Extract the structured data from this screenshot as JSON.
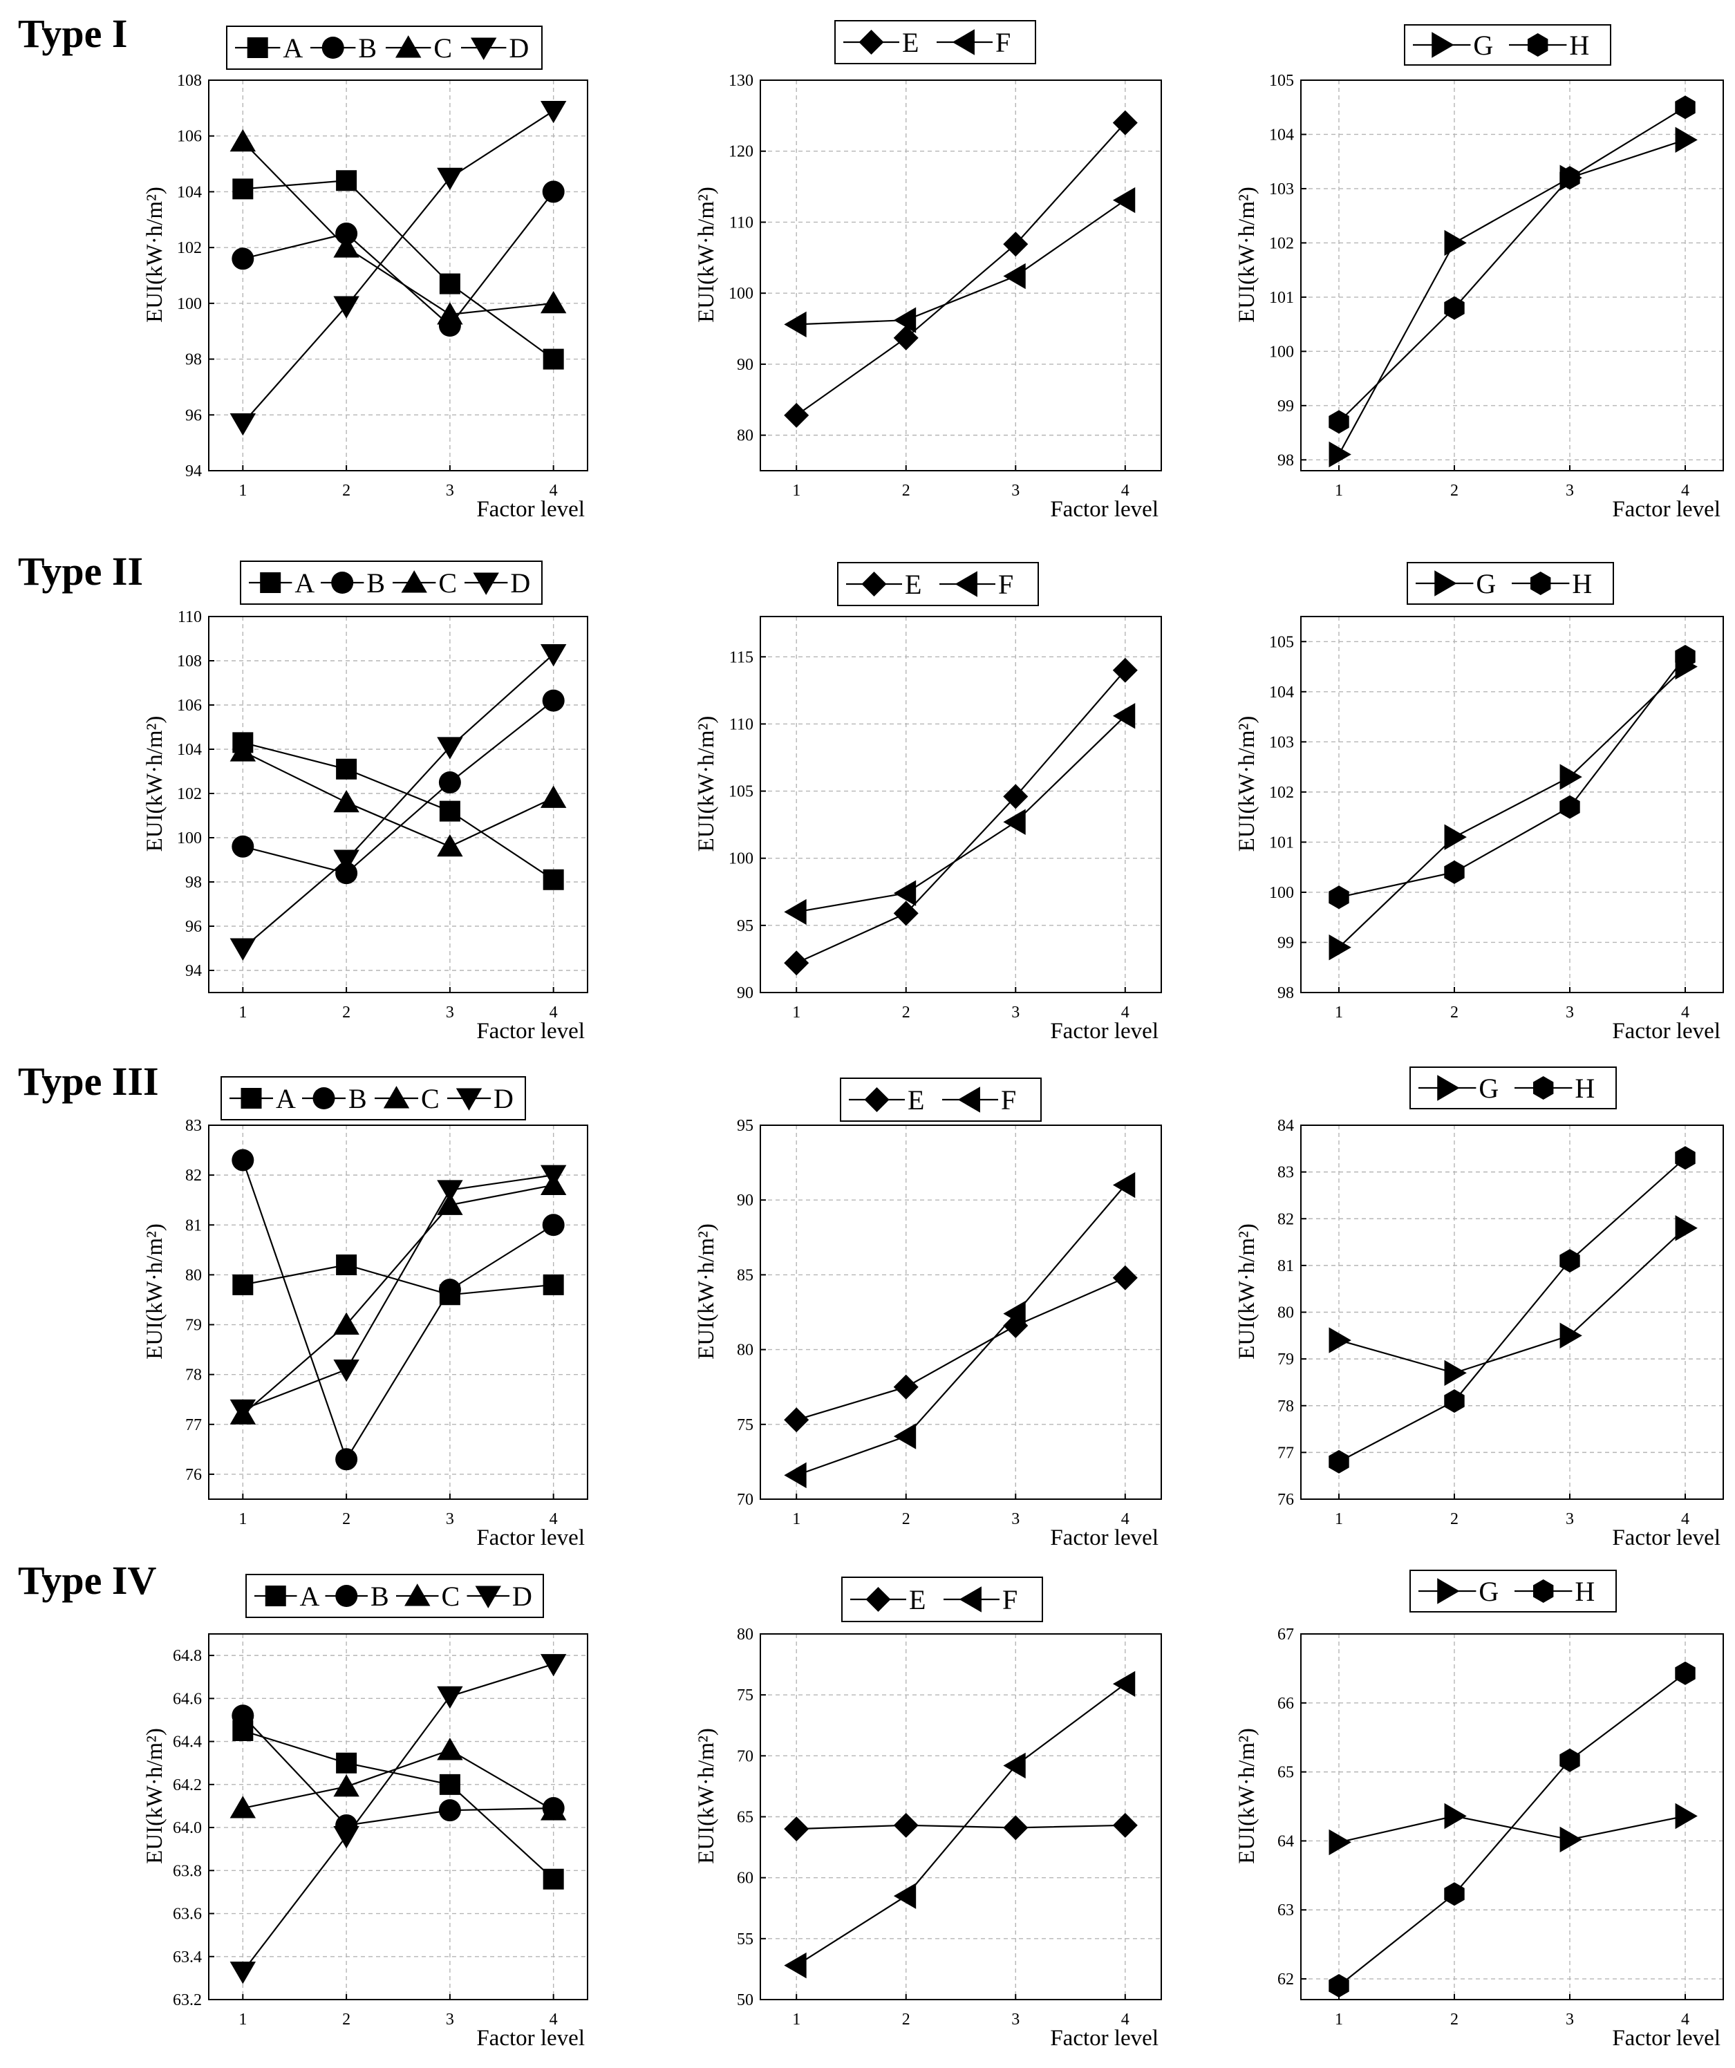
{
  "figure": {
    "row_labels": [
      "Type I",
      "Type II",
      "Type III",
      "Type IV"
    ],
    "x_axis_label": "Factor level",
    "y_axis_label": "EUI(kW·h/m²)"
  },
  "chart_data": [
    {
      "type": "line",
      "title": "",
      "row": "Type I",
      "xlabel": "Factor level",
      "ylabel": "EUI(kW·h/m²)",
      "x": [
        1,
        2,
        3,
        4
      ],
      "ylim": [
        94,
        108
      ],
      "yticks": [
        94,
        96,
        98,
        100,
        102,
        104,
        106,
        108
      ],
      "grid": true,
      "legend": "top",
      "series": [
        {
          "name": "A",
          "marker": "square",
          "values": [
            104.1,
            104.4,
            100.7,
            98.0
          ]
        },
        {
          "name": "B",
          "marker": "circle",
          "values": [
            101.6,
            102.5,
            99.2,
            104.0
          ]
        },
        {
          "name": "C",
          "marker": "triangle-up",
          "values": [
            105.8,
            102.0,
            99.6,
            100.0
          ]
        },
        {
          "name": "D",
          "marker": "triangle-down",
          "values": [
            95.7,
            99.9,
            104.5,
            106.9
          ]
        }
      ]
    },
    {
      "type": "line",
      "title": "",
      "row": "Type I",
      "xlabel": "Factor level",
      "ylabel": "EUI(kW·h/m²)",
      "x": [
        1,
        2,
        3,
        4
      ],
      "ylim": [
        75,
        130
      ],
      "yticks": [
        80,
        90,
        100,
        110,
        120,
        130
      ],
      "grid": true,
      "legend": "top",
      "series": [
        {
          "name": "E",
          "marker": "diamond",
          "values": [
            82.8,
            93.7,
            106.9,
            124.0
          ]
        },
        {
          "name": "F",
          "marker": "triangle-left",
          "values": [
            95.6,
            96.2,
            102.4,
            113.1
          ]
        }
      ]
    },
    {
      "type": "line",
      "title": "",
      "row": "Type I",
      "xlabel": "Factor level",
      "ylabel": "EUI(kW·h/m²)",
      "x": [
        1,
        2,
        3,
        4
      ],
      "ylim": [
        97.8,
        105
      ],
      "yticks": [
        98,
        99,
        100,
        101,
        102,
        103,
        104,
        105
      ],
      "grid": true,
      "legend": "top",
      "series": [
        {
          "name": "G",
          "marker": "triangle-right",
          "values": [
            98.1,
            102.0,
            103.2,
            103.9
          ]
        },
        {
          "name": "H",
          "marker": "hexagon",
          "values": [
            98.7,
            100.8,
            103.2,
            104.5
          ]
        }
      ]
    },
    {
      "type": "line",
      "title": "",
      "row": "Type II",
      "xlabel": "Factor level",
      "ylabel": "EUI(kW·h/m²)",
      "x": [
        1,
        2,
        3,
        4
      ],
      "ylim": [
        93,
        110
      ],
      "yticks": [
        94,
        96,
        98,
        100,
        102,
        104,
        106,
        108,
        110
      ],
      "grid": true,
      "legend": "top",
      "series": [
        {
          "name": "A",
          "marker": "square",
          "values": [
            104.3,
            103.1,
            101.2,
            98.1
          ]
        },
        {
          "name": "B",
          "marker": "circle",
          "values": [
            99.6,
            98.4,
            102.5,
            106.2
          ]
        },
        {
          "name": "C",
          "marker": "triangle-up",
          "values": [
            103.9,
            101.6,
            99.6,
            101.8
          ]
        },
        {
          "name": "D",
          "marker": "triangle-down",
          "values": [
            95.0,
            99.0,
            104.1,
            108.3
          ]
        }
      ]
    },
    {
      "type": "line",
      "title": "",
      "row": "Type II",
      "xlabel": "Factor level",
      "ylabel": "EUI(kW·h/m²)",
      "x": [
        1,
        2,
        3,
        4
      ],
      "ylim": [
        90,
        118
      ],
      "yticks": [
        90,
        95,
        100,
        105,
        110,
        115
      ],
      "grid": true,
      "legend": "top",
      "series": [
        {
          "name": "E",
          "marker": "diamond",
          "values": [
            92.2,
            95.9,
            104.6,
            114.0
          ]
        },
        {
          "name": "F",
          "marker": "triangle-left",
          "values": [
            96.0,
            97.4,
            102.7,
            110.6
          ]
        }
      ]
    },
    {
      "type": "line",
      "title": "",
      "row": "Type II",
      "xlabel": "Factor level",
      "ylabel": "EUI(kW·h/m²)",
      "x": [
        1,
        2,
        3,
        4
      ],
      "ylim": [
        98,
        105.5
      ],
      "yticks": [
        98,
        99,
        100,
        101,
        102,
        103,
        104,
        105
      ],
      "grid": true,
      "legend": "top",
      "series": [
        {
          "name": "G",
          "marker": "triangle-right",
          "values": [
            98.9,
            101.1,
            102.3,
            104.5
          ]
        },
        {
          "name": "H",
          "marker": "hexagon",
          "values": [
            99.9,
            100.4,
            101.7,
            104.7
          ]
        }
      ]
    },
    {
      "type": "line",
      "title": "",
      "row": "Type III",
      "xlabel": "Factor level",
      "ylabel": "EUI(kW·h/m²)",
      "x": [
        1,
        2,
        3,
        4
      ],
      "ylim": [
        75.5,
        83
      ],
      "yticks": [
        76,
        77,
        78,
        79,
        80,
        81,
        82,
        83
      ],
      "grid": true,
      "legend": "top",
      "series": [
        {
          "name": "A",
          "marker": "square",
          "values": [
            79.8,
            80.2,
            79.6,
            79.8
          ]
        },
        {
          "name": "B",
          "marker": "circle",
          "values": [
            82.3,
            76.3,
            79.7,
            81.0
          ]
        },
        {
          "name": "C",
          "marker": "triangle-up",
          "values": [
            77.2,
            79.0,
            81.4,
            81.8
          ]
        },
        {
          "name": "D",
          "marker": "triangle-down",
          "values": [
            77.3,
            78.1,
            81.7,
            82.0
          ]
        }
      ]
    },
    {
      "type": "line",
      "title": "",
      "row": "Type III",
      "xlabel": "Factor level",
      "ylabel": "EUI(kW·h/m²)",
      "x": [
        1,
        2,
        3,
        4
      ],
      "ylim": [
        70,
        95
      ],
      "yticks": [
        70,
        75,
        80,
        85,
        90,
        95
      ],
      "grid": true,
      "legend": "top",
      "series": [
        {
          "name": "E",
          "marker": "diamond",
          "values": [
            75.3,
            77.5,
            81.6,
            84.8
          ]
        },
        {
          "name": "F",
          "marker": "triangle-left",
          "values": [
            71.6,
            74.2,
            82.4,
            91.0
          ]
        }
      ]
    },
    {
      "type": "line",
      "title": "",
      "row": "Type III",
      "xlabel": "Factor level",
      "ylabel": "EUI(kW·h/m²)",
      "x": [
        1,
        2,
        3,
        4
      ],
      "ylim": [
        76,
        84
      ],
      "yticks": [
        76,
        77,
        78,
        79,
        80,
        81,
        82,
        83,
        84
      ],
      "grid": true,
      "legend": "top",
      "series": [
        {
          "name": "G",
          "marker": "triangle-right",
          "values": [
            79.4,
            78.7,
            79.5,
            81.8
          ]
        },
        {
          "name": "H",
          "marker": "hexagon",
          "values": [
            76.8,
            78.1,
            81.1,
            83.3
          ]
        }
      ]
    },
    {
      "type": "line",
      "title": "",
      "row": "Type IV",
      "xlabel": "Factor level",
      "ylabel": "EUI(kW·h/m²)",
      "x": [
        1,
        2,
        3,
        4
      ],
      "ylim": [
        63.2,
        64.9
      ],
      "yticks": [
        63.2,
        63.4,
        63.6,
        63.8,
        64.0,
        64.2,
        64.4,
        64.6,
        64.8
      ],
      "grid": true,
      "legend": "top",
      "series": [
        {
          "name": "A",
          "marker": "square",
          "values": [
            64.45,
            64.3,
            64.2,
            63.76
          ]
        },
        {
          "name": "B",
          "marker": "circle",
          "values": [
            64.52,
            64.01,
            64.08,
            64.09
          ]
        },
        {
          "name": "C",
          "marker": "triangle-up",
          "values": [
            64.09,
            64.19,
            64.36,
            64.08
          ]
        },
        {
          "name": "D",
          "marker": "triangle-down",
          "values": [
            63.33,
            63.96,
            64.61,
            64.76
          ]
        }
      ]
    },
    {
      "type": "line",
      "title": "",
      "row": "Type IV",
      "xlabel": "Factor level",
      "ylabel": "EUI(kW·h/m²)",
      "x": [
        1,
        2,
        3,
        4
      ],
      "ylim": [
        50,
        80
      ],
      "yticks": [
        50,
        55,
        60,
        65,
        70,
        75,
        80
      ],
      "grid": true,
      "legend": "top",
      "series": [
        {
          "name": "E",
          "marker": "diamond",
          "values": [
            64.0,
            64.3,
            64.1,
            64.3
          ]
        },
        {
          "name": "F",
          "marker": "triangle-left",
          "values": [
            52.8,
            58.5,
            69.2,
            75.9
          ]
        }
      ]
    },
    {
      "type": "line",
      "title": "",
      "row": "Type IV",
      "xlabel": "Factor level",
      "ylabel": "EUI(kW·h/m²)",
      "x": [
        1,
        2,
        3,
        4
      ],
      "ylim": [
        61.7,
        67
      ],
      "yticks": [
        62,
        63,
        64,
        65,
        66,
        67
      ],
      "grid": true,
      "legend": "top",
      "series": [
        {
          "name": "G",
          "marker": "triangle-right",
          "values": [
            63.98,
            64.36,
            64.02,
            64.36
          ]
        },
        {
          "name": "H",
          "marker": "hexagon",
          "values": [
            61.9,
            63.23,
            65.17,
            66.43
          ]
        }
      ]
    }
  ]
}
